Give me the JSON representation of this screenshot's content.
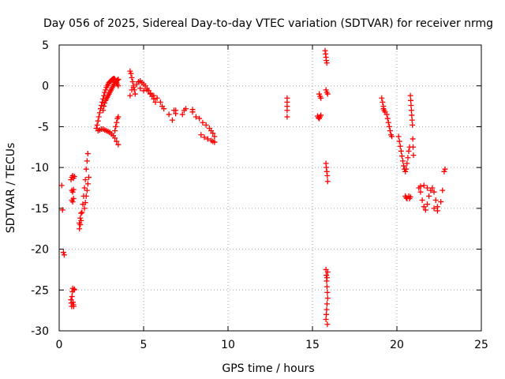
{
  "chart_data": {
    "type": "scatter",
    "title": "Day 056 of 2025, Sidereal Day-to-day VTEC variation (SDTVAR) for receiver nrmg",
    "xlabel": "GPS time / hours",
    "ylabel": "SDTVAR / TECUs",
    "xlim": [
      0,
      25
    ],
    "ylim": [
      -30,
      5
    ],
    "x_ticks": [
      0,
      5,
      10,
      15,
      20,
      25
    ],
    "y_ticks": [
      -30,
      -25,
      -20,
      -15,
      -10,
      -5,
      0,
      5
    ],
    "grid": true,
    "marker": "+",
    "series": [
      {
        "name": "SDTVAR",
        "color": "#ff0000",
        "x": [
          0.15,
          0.2,
          0.25,
          0.3,
          0.7,
          0.72,
          0.74,
          0.76,
          0.78,
          0.8,
          0.82,
          0.84,
          0.86,
          0.88,
          0.9,
          0.75,
          0.8,
          0.85,
          0.7,
          0.75,
          0.8,
          0.85,
          0.9,
          0.75,
          0.8,
          0.85,
          1.2,
          1.25,
          1.3,
          1.35,
          1.4,
          1.45,
          1.5,
          1.55,
          1.6,
          1.65,
          1.7,
          1.5,
          1.55,
          1.6,
          1.65,
          1.7,
          1.75,
          1.2,
          1.25,
          1.3,
          2.2,
          2.25,
          2.3,
          2.35,
          2.4,
          2.45,
          2.5,
          2.55,
          2.6,
          2.65,
          2.7,
          2.75,
          2.8,
          2.85,
          2.9,
          2.95,
          3.0,
          3.05,
          3.1,
          3.15,
          3.2,
          3.25,
          3.3,
          3.35,
          3.4,
          3.45,
          3.5,
          2.6,
          2.65,
          2.7,
          2.75,
          2.8,
          2.85,
          2.9,
          2.95,
          3.0,
          3.05,
          3.1,
          3.15,
          3.2,
          3.25,
          3.3,
          3.35,
          3.4,
          3.45,
          3.5,
          2.3,
          2.4,
          2.5,
          2.6,
          2.7,
          2.8,
          2.9,
          3.0,
          3.1,
          3.2,
          3.3,
          3.4,
          3.5,
          3.3,
          3.35,
          3.4,
          3.45,
          3.5,
          4.2,
          4.25,
          4.3,
          4.35,
          4.4,
          4.45,
          4.5,
          4.2,
          4.3,
          4.4,
          4.6,
          4.8,
          5.0,
          5.2,
          5.4,
          5.6,
          5.8,
          6.0,
          6.1,
          6.2,
          4.7,
          4.8,
          4.9,
          5.0,
          5.1,
          5.2,
          5.3,
          5.4,
          5.5,
          5.6,
          5.7,
          6.5,
          6.7,
          6.9,
          7.3,
          7.5,
          7.9,
          8.1,
          6.8,
          6.9,
          7.4,
          7.9,
          8.3,
          8.5,
          8.7,
          8.9,
          9.0,
          9.1,
          9.2,
          8.4,
          8.6,
          8.8,
          9.0,
          9.1,
          9.2,
          13.5,
          13.5,
          13.5,
          13.5,
          13.5,
          15.3,
          15.35,
          15.4,
          15.45,
          15.5,
          15.4,
          15.45,
          15.5,
          15.75,
          15.78,
          15.8,
          15.82,
          15.85,
          15.8,
          15.85,
          15.9,
          15.8,
          15.82,
          15.85,
          15.88,
          15.9,
          15.8,
          15.82,
          15.84,
          15.86,
          15.88,
          15.9,
          15.86,
          15.84,
          15.82,
          15.8,
          15.88,
          15.9,
          15.86,
          19.1,
          19.15,
          19.2,
          19.25,
          19.3,
          19.2,
          19.4,
          19.45,
          19.5,
          19.55,
          19.6,
          19.65,
          19.7,
          20.1,
          20.15,
          20.2,
          20.25,
          20.3,
          20.35,
          20.4,
          20.45,
          20.5,
          20.55,
          20.6,
          20.65,
          20.7,
          20.75,
          20.8,
          20.82,
          20.84,
          20.86,
          20.88,
          20.9,
          20.92,
          20.94,
          20.96,
          20.98,
          20.5,
          20.55,
          20.6,
          20.7,
          20.75,
          20.8,
          21.3,
          21.4,
          21.5,
          21.6,
          21.7,
          21.8,
          21.9,
          22.0,
          22.1,
          22.2,
          22.3,
          22.4,
          21.4,
          21.6,
          21.8,
          22.2,
          22.4,
          22.6,
          22.7,
          22.8,
          22.85
        ],
        "y": [
          -12.2,
          -15.2,
          -20.4,
          -20.7,
          -26.2,
          -26.6,
          -27.0,
          -25.8,
          -25.2,
          -24.8,
          -26.5,
          -26.8,
          -27.0,
          -25.0,
          -24.9,
          -14.0,
          -14.2,
          -13.8,
          -11.5,
          -11.2,
          -11.0,
          -11.3,
          -11.1,
          -12.8,
          -13.0,
          -12.7,
          -17.5,
          -17.0,
          -16.5,
          -15.5,
          -14.5,
          -13.5,
          -12.5,
          -11.5,
          -10.2,
          -9.2,
          -8.3,
          -15.0,
          -14.3,
          -13.5,
          -12.8,
          -12.0,
          -11.2,
          -16.8,
          -16.2,
          -15.6,
          -5.2,
          -4.8,
          -4.3,
          -3.8,
          -3.3,
          -2.8,
          -2.4,
          -2.0,
          -1.6,
          -1.2,
          -0.8,
          -0.5,
          -0.2,
          0.0,
          0.2,
          0.4,
          0.5,
          0.6,
          0.7,
          0.8,
          0.85,
          0.9,
          0.8,
          0.6,
          0.4,
          0.2,
          0.0,
          -3.0,
          -2.5,
          -2.1,
          -1.8,
          -1.6,
          -1.4,
          -1.2,
          -1.0,
          -0.8,
          -0.6,
          -0.4,
          -0.2,
          0.0,
          0.2,
          0.4,
          0.5,
          0.6,
          0.7,
          0.8,
          -5.5,
          -5.4,
          -5.3,
          -5.3,
          -5.4,
          -5.5,
          -5.6,
          -5.7,
          -5.9,
          -6.1,
          -6.4,
          -6.8,
          -7.2,
          -5.5,
          -5.0,
          -4.5,
          -4.0,
          -3.8,
          1.8,
          1.5,
          1.0,
          0.5,
          0.0,
          -0.5,
          -1.0,
          -1.2,
          -0.5,
          -0.2,
          0.2,
          -0.3,
          -0.6,
          -0.5,
          -0.9,
          -1.2,
          -1.5,
          -2.0,
          -2.5,
          -2.8,
          0.5,
          0.6,
          0.4,
          0.2,
          0.0,
          -0.3,
          -0.6,
          -1.0,
          -1.3,
          -1.6,
          -2.0,
          -3.5,
          -4.2,
          -3.0,
          -3.5,
          -2.8,
          -3.2,
          -3.8,
          -3.0,
          -3.4,
          -3.0,
          -2.9,
          -4.0,
          -4.5,
          -4.8,
          -5.2,
          -5.5,
          -5.8,
          -6.2,
          -6.0,
          -6.3,
          -6.5,
          -6.7,
          -6.8,
          -6.9,
          -1.5,
          -2.0,
          -2.5,
          -3.0,
          -3.8,
          -3.7,
          -3.9,
          -4.0,
          -3.8,
          -3.6,
          -1.0,
          -1.3,
          -1.5,
          4.3,
          3.9,
          3.5,
          3.1,
          2.8,
          -0.5,
          -0.8,
          -1.0,
          -9.5,
          -10.0,
          -10.5,
          -11.0,
          -11.7,
          -22.5,
          -23.2,
          -23.9,
          -24.6,
          -25.3,
          -26.0,
          -26.7,
          -27.4,
          -28.0,
          -28.6,
          -29.2,
          -22.8,
          -23.5,
          -1.5,
          -2.0,
          -2.5,
          -3.0,
          -3.2,
          -2.8,
          -3.5,
          -4.0,
          -4.5,
          -5.0,
          -5.5,
          -6.0,
          -6.2,
          -6.2,
          -6.8,
          -7.4,
          -8.0,
          -8.6,
          -9.2,
          -9.8,
          -10.2,
          -10.5,
          -10.2,
          -9.5,
          -8.8,
          -8.0,
          -7.5,
          -1.2,
          -1.8,
          -2.4,
          -3.0,
          -3.6,
          -4.2,
          -4.8,
          -6.5,
          -7.5,
          -8.5,
          -13.5,
          -13.7,
          -13.8,
          -13.5,
          -13.8,
          -13.6,
          -12.5,
          -13.0,
          -14.0,
          -14.8,
          -15.2,
          -14.5,
          -13.5,
          -12.8,
          -12.5,
          -13.0,
          -14.0,
          -14.8,
          -12.3,
          -12.2,
          -12.5,
          -15.0,
          -15.3,
          -14.2,
          -12.8,
          -10.5,
          -10.2
        ]
      }
    ]
  }
}
